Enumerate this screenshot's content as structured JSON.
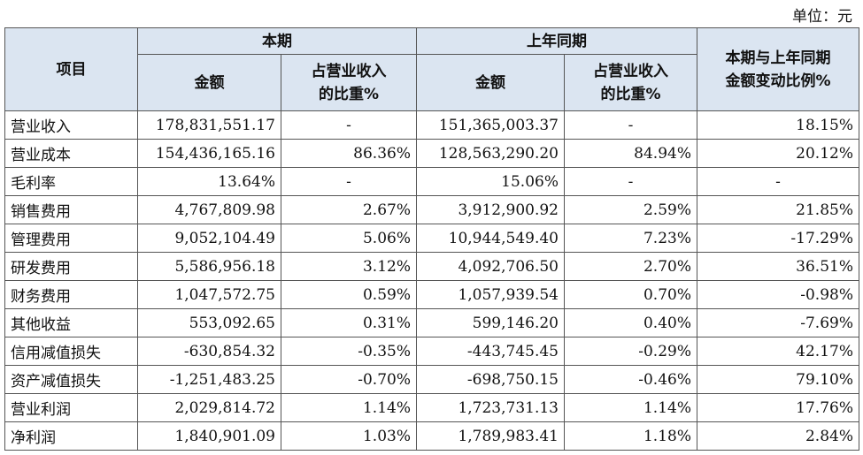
{
  "unit": "单位：元",
  "table": {
    "header": {
      "item": "项目",
      "current": {
        "label": "本期",
        "amount": "金额",
        "ratio": "占营业收入\n的比重%"
      },
      "previous": {
        "label": "上年同期",
        "amount": "金额",
        "ratio": "占营业收入\n的比重%"
      },
      "change": "本期与上年同期\n金额变动比例%"
    },
    "rows": [
      [
        "营业收入",
        "178,831,551.17",
        "-",
        "151,365,003.37",
        "-",
        "18.15%"
      ],
      [
        "营业成本",
        "154,436,165.16",
        "86.36%",
        "128,563,290.20",
        "84.94%",
        "20.12%"
      ],
      [
        "毛利率",
        "13.64%",
        "-",
        "15.06%",
        "-",
        "-"
      ],
      [
        "销售费用",
        "4,767,809.98",
        "2.67%",
        "3,912,900.92",
        "2.59%",
        "21.85%"
      ],
      [
        "管理费用",
        "9,052,104.49",
        "5.06%",
        "10,944,549.40",
        "7.23%",
        "-17.29%"
      ],
      [
        "研发费用",
        "5,586,956.18",
        "3.12%",
        "4,092,706.50",
        "2.70%",
        "36.51%"
      ],
      [
        "财务费用",
        "1,047,572.75",
        "0.59%",
        "1,057,939.54",
        "0.70%",
        "-0.98%"
      ],
      [
        "其他收益",
        "553,092.65",
        "0.31%",
        "599,146.20",
        "0.40%",
        "-7.69%"
      ],
      [
        "信用减值损失",
        "-630,854.32",
        "-0.35%",
        "-443,745.45",
        "-0.29%",
        "42.17%"
      ],
      [
        "资产减值损失",
        "-1,251,483.25",
        "-0.70%",
        "-698,750.15",
        "-0.46%",
        "79.10%"
      ],
      [
        "营业利润",
        "2,029,814.72",
        "1.14%",
        "1,723,731.13",
        "1.14%",
        "17.76%"
      ],
      [
        "净利润",
        "1,840,901.09",
        "1.03%",
        "1,789,983.41",
        "1.18%",
        "2.84%"
      ]
    ]
  }
}
